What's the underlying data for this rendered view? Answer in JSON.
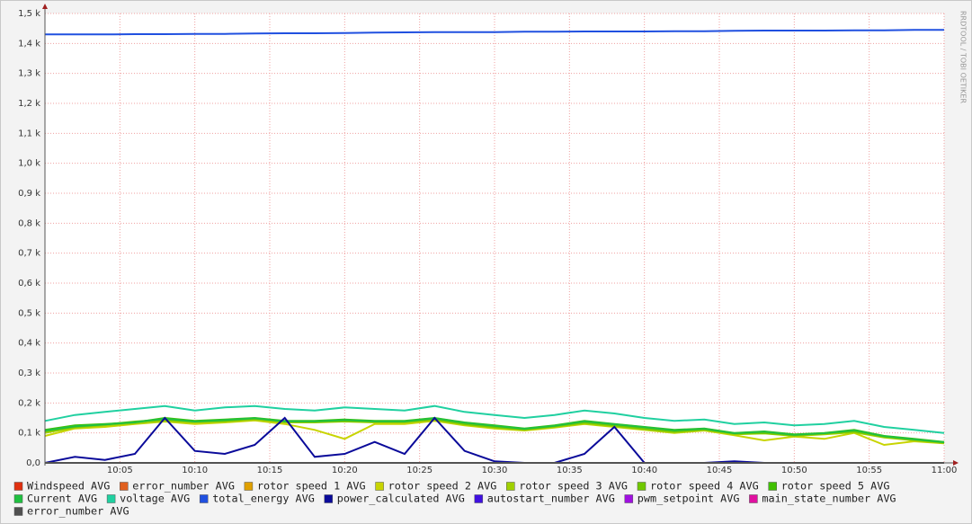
{
  "chart_data": {
    "type": "line",
    "watermark": "RRDTOOL / TOBI OETIKER",
    "x": [
      0,
      2,
      4,
      6,
      8,
      10,
      12,
      14,
      16,
      18,
      20,
      22,
      24,
      26,
      28,
      30,
      32,
      34,
      36,
      38,
      40,
      42,
      44,
      46,
      48,
      50,
      52,
      54,
      56,
      58,
      60
    ],
    "xlim": [
      0,
      60
    ],
    "xticks": [
      {
        "value": 5,
        "label": "10:05"
      },
      {
        "value": 10,
        "label": "10:10"
      },
      {
        "value": 15,
        "label": "10:15"
      },
      {
        "value": 20,
        "label": "10:20"
      },
      {
        "value": 25,
        "label": "10:25"
      },
      {
        "value": 30,
        "label": "10:30"
      },
      {
        "value": 35,
        "label": "10:35"
      },
      {
        "value": 40,
        "label": "10:40"
      },
      {
        "value": 45,
        "label": "10:45"
      },
      {
        "value": 50,
        "label": "10:50"
      },
      {
        "value": 55,
        "label": "10:55"
      },
      {
        "value": 60,
        "label": "11:00"
      }
    ],
    "ylim": [
      0,
      1500
    ],
    "yticks": [
      {
        "value": 0,
        "label": "0,0"
      },
      {
        "value": 100,
        "label": "0,1 k"
      },
      {
        "value": 200,
        "label": "0,2 k"
      },
      {
        "value": 300,
        "label": "0,3 k"
      },
      {
        "value": 400,
        "label": "0,4 k"
      },
      {
        "value": 500,
        "label": "0,5 k"
      },
      {
        "value": 600,
        "label": "0,6 k"
      },
      {
        "value": 700,
        "label": "0,7 k"
      },
      {
        "value": 800,
        "label": "0,8 k"
      },
      {
        "value": 900,
        "label": "0,9 k"
      },
      {
        "value": 1000,
        "label": "1,0 k"
      },
      {
        "value": 1100,
        "label": "1,1 k"
      },
      {
        "value": 1200,
        "label": "1,2 k"
      },
      {
        "value": 1300,
        "label": "1,3 k"
      },
      {
        "value": 1400,
        "label": "1,4 k"
      },
      {
        "value": 1500,
        "label": "1,5 k"
      }
    ],
    "grid": true,
    "series": [
      {
        "name": "Windspeed AVG",
        "color": "#e03010",
        "values": [
          0,
          0,
          0,
          0,
          0,
          0,
          0,
          0,
          0,
          0,
          0,
          0,
          0,
          0,
          0,
          0,
          0,
          0,
          0,
          0,
          0,
          0,
          0,
          0,
          0,
          0,
          0,
          0,
          0,
          0,
          0
        ]
      },
      {
        "name": "error_number AVG",
        "color": "#e06020",
        "values": [
          0,
          0,
          0,
          0,
          0,
          0,
          0,
          0,
          0,
          0,
          0,
          0,
          0,
          0,
          0,
          0,
          0,
          0,
          0,
          0,
          0,
          0,
          0,
          0,
          0,
          0,
          0,
          0,
          0,
          0,
          0
        ]
      },
      {
        "name": "rotor speed 1 AVG",
        "color": "#e0a000",
        "values": [
          0,
          0,
          0,
          0,
          0,
          0,
          0,
          0,
          0,
          0,
          0,
          0,
          0,
          0,
          0,
          0,
          0,
          0,
          0,
          0,
          0,
          0,
          0,
          0,
          0,
          0,
          0,
          0,
          0,
          0,
          0
        ]
      },
      {
        "name": "rotor speed 2 AVG",
        "color": "#c8d400",
        "values": [
          90,
          115,
          120,
          130,
          138,
          130,
          135,
          142,
          130,
          110,
          80,
          130,
          130,
          140,
          125,
          115,
          108,
          118,
          130,
          120,
          110,
          100,
          108,
          92,
          75,
          88,
          80,
          100,
          60,
          72,
          65
        ]
      },
      {
        "name": "rotor speed 3 AVG",
        "color": "#a0d000",
        "values": [
          100,
          118,
          125,
          132,
          140,
          135,
          138,
          145,
          135,
          135,
          138,
          135,
          135,
          143,
          128,
          118,
          110,
          120,
          132,
          122,
          112,
          102,
          110,
          95,
          98,
          90,
          95,
          102,
          85,
          75,
          66
        ]
      },
      {
        "name": "rotor speed 4 AVG",
        "color": "#70c800",
        "values": [
          105,
          120,
          128,
          138,
          145,
          138,
          140,
          148,
          138,
          137,
          140,
          138,
          137,
          146,
          130,
          120,
          112,
          122,
          135,
          125,
          115,
          105,
          112,
          98,
          100,
          92,
          98,
          105,
          88,
          78,
          68
        ]
      },
      {
        "name": "rotor speed 5 AVG",
        "color": "#40c000",
        "values": [
          110,
          125,
          130,
          135,
          150,
          140,
          145,
          150,
          140,
          140,
          145,
          140,
          140,
          150,
          135,
          125,
          115,
          125,
          140,
          130,
          120,
          110,
          115,
          100,
          105,
          95,
          100,
          110,
          90,
          80,
          70
        ]
      },
      {
        "name": "Current AVG",
        "color": "#20c040",
        "values": [
          108,
          122,
          128,
          136,
          148,
          138,
          143,
          149,
          139,
          139,
          143,
          139,
          139,
          149,
          134,
          124,
          114,
          124,
          139,
          129,
          119,
          109,
          114,
          99,
          104,
          94,
          99,
          109,
          89,
          79,
          69
        ]
      },
      {
        "name": "voltage AVG",
        "color": "#20d0a0",
        "values": [
          140,
          160,
          170,
          180,
          190,
          175,
          185,
          190,
          180,
          175,
          185,
          180,
          175,
          190,
          170,
          160,
          150,
          160,
          175,
          165,
          150,
          140,
          145,
          130,
          135,
          125,
          130,
          140,
          120,
          110,
          100
        ]
      },
      {
        "name": "total_energy AVG",
        "color": "#2050e0",
        "values": [
          1430,
          1430,
          1430,
          1431,
          1431,
          1432,
          1432,
          1433,
          1434,
          1434,
          1435,
          1436,
          1437,
          1438,
          1438,
          1438,
          1439,
          1439,
          1440,
          1440,
          1440,
          1441,
          1441,
          1442,
          1443,
          1443,
          1443,
          1444,
          1444,
          1445,
          1445
        ]
      },
      {
        "name": "power_calculated AVG",
        "color": "#0a0a9a",
        "values": [
          0,
          20,
          10,
          30,
          150,
          40,
          30,
          60,
          150,
          20,
          30,
          70,
          30,
          150,
          40,
          5,
          0,
          0,
          30,
          120,
          0,
          0,
          0,
          5,
          0,
          0,
          0,
          0,
          0,
          0,
          0
        ]
      },
      {
        "name": "autostart_number AVG",
        "color": "#4010e0",
        "values": [
          0,
          0,
          0,
          0,
          0,
          0,
          0,
          0,
          0,
          0,
          0,
          0,
          0,
          0,
          0,
          0,
          0,
          0,
          0,
          0,
          0,
          0,
          0,
          0,
          0,
          0,
          0,
          0,
          0,
          0,
          0
        ]
      },
      {
        "name": "pwm_setpoint AVG",
        "color": "#a010e0",
        "values": [
          0,
          0,
          0,
          0,
          0,
          0,
          0,
          0,
          0,
          0,
          0,
          0,
          0,
          0,
          0,
          0,
          0,
          0,
          0,
          0,
          0,
          0,
          0,
          0,
          0,
          0,
          0,
          0,
          0,
          0,
          0
        ]
      },
      {
        "name": "main_state_number AVG",
        "color": "#e010a0",
        "values": [
          0,
          0,
          0,
          0,
          0,
          0,
          0,
          0,
          0,
          0,
          0,
          0,
          0,
          0,
          0,
          0,
          0,
          0,
          0,
          0,
          0,
          0,
          0,
          0,
          0,
          0,
          0,
          0,
          0,
          0,
          0
        ]
      },
      {
        "name": "error_number AVG",
        "color": "#505050",
        "values": [
          0,
          0,
          0,
          0,
          0,
          0,
          0,
          0,
          0,
          0,
          0,
          0,
          0,
          0,
          0,
          0,
          0,
          0,
          0,
          0,
          0,
          0,
          0,
          0,
          0,
          0,
          0,
          0,
          0,
          0,
          0
        ]
      }
    ]
  }
}
